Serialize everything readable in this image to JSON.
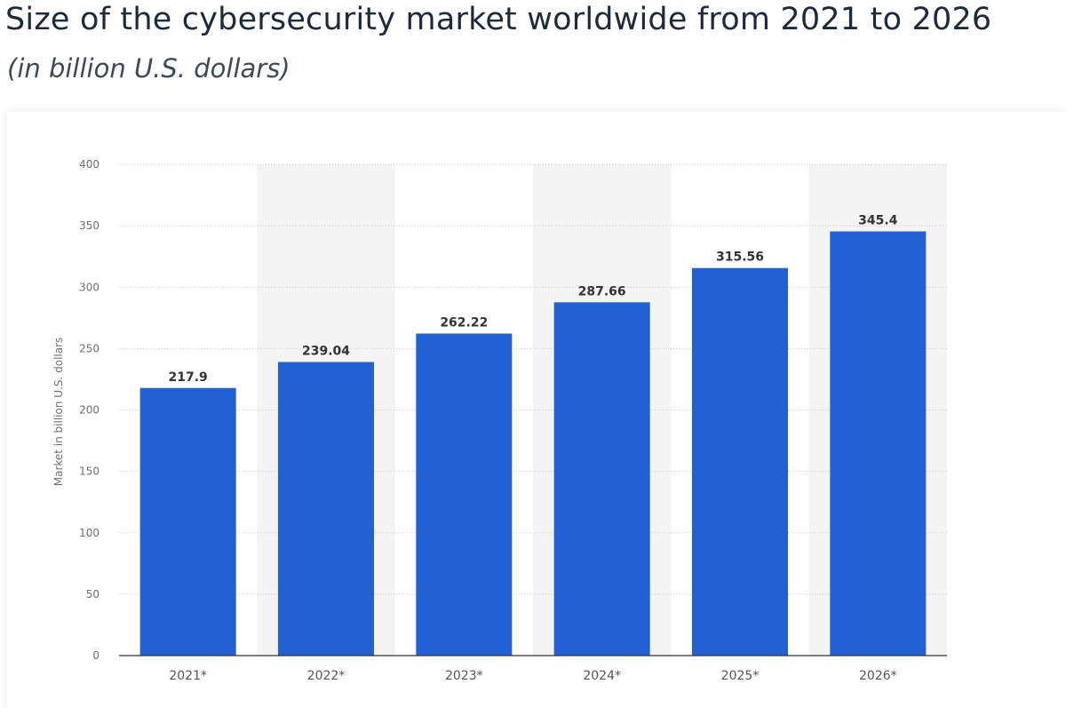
{
  "header": {
    "title": "Size of the cybersecurity market worldwide from 2021 to 2026",
    "subtitle": "(in billion U.S. dollars)"
  },
  "colors": {
    "bar": "#2260d6",
    "band": "#f4f4f4",
    "grid": "#c8c8c8",
    "axis": "#333333"
  },
  "chart_data": {
    "type": "bar",
    "categories": [
      "2021*",
      "2022*",
      "2023*",
      "2024*",
      "2025*",
      "2026*"
    ],
    "values": [
      217.9,
      239.04,
      262.22,
      287.66,
      315.56,
      345.4
    ],
    "value_labels": [
      "217.9",
      "239.04",
      "262.22",
      "287.66",
      "315.56",
      "345.4"
    ],
    "ylabel": "Market in billion U.S. dollars",
    "ylim": [
      0,
      400
    ],
    "yticks": [
      0,
      50,
      100,
      150,
      200,
      250,
      300,
      350,
      400
    ],
    "grid": true,
    "alternating_bands": true
  }
}
